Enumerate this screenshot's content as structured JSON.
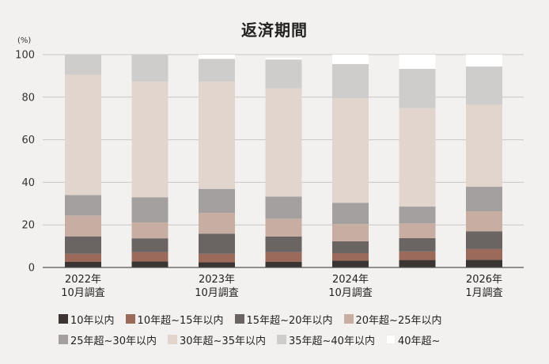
{
  "chart_data": {
    "type": "bar",
    "stacked": true,
    "title": "返済期間",
    "ylabel": "(%)",
    "ylim": [
      0,
      100
    ],
    "yticks": [
      0,
      20,
      40,
      60,
      80,
      100
    ],
    "grid": true,
    "legend_position": "bottom",
    "categories": [
      [
        "2022年",
        "10月調査"
      ],
      [
        "",
        ""
      ],
      [
        "2023年",
        "10月調査"
      ],
      [
        "",
        ""
      ],
      [
        "2024年",
        "10月調査"
      ],
      [
        "",
        ""
      ],
      [
        "2026年",
        "1月調査"
      ]
    ],
    "series": [
      {
        "name": "10年以内",
        "color": "#3a3432",
        "values": [
          2.6,
          2.8,
          2.4,
          2.6,
          3.2,
          3.5,
          3.6
        ]
      },
      {
        "name": "10年超~15年以内",
        "color": "#9c6a5a",
        "values": [
          3.8,
          4.4,
          4.0,
          4.6,
          3.5,
          4.0,
          5.0
        ]
      },
      {
        "name": "15年超~20年以内",
        "color": "#6a6563",
        "values": [
          8.2,
          6.5,
          9.5,
          7.3,
          5.6,
          6.3,
          8.4
        ]
      },
      {
        "name": "20年超~25年以内",
        "color": "#c8ada2",
        "values": [
          9.8,
          7.5,
          9.7,
          8.4,
          8.1,
          6.9,
          9.3
        ]
      },
      {
        "name": "25年超~30年以内",
        "color": "#a3a09f",
        "values": [
          9.6,
          11.8,
          11.3,
          10.4,
          10.0,
          7.9,
          11.6
        ]
      },
      {
        "name": "30年超~35年以内",
        "color": "#e2d5ce",
        "values": [
          56.5,
          54.3,
          50.4,
          50.9,
          49.0,
          46.2,
          38.5
        ]
      },
      {
        "name": "35年超~40年以内",
        "color": "#cfcdcc",
        "values": [
          9.5,
          12.7,
          10.7,
          13.5,
          16.2,
          18.5,
          18.0
        ]
      },
      {
        "name": "40年超~",
        "color": "#ffffff",
        "values": [
          0.0,
          0.0,
          2.0,
          0.8,
          4.4,
          6.7,
          5.6
        ]
      }
    ]
  }
}
